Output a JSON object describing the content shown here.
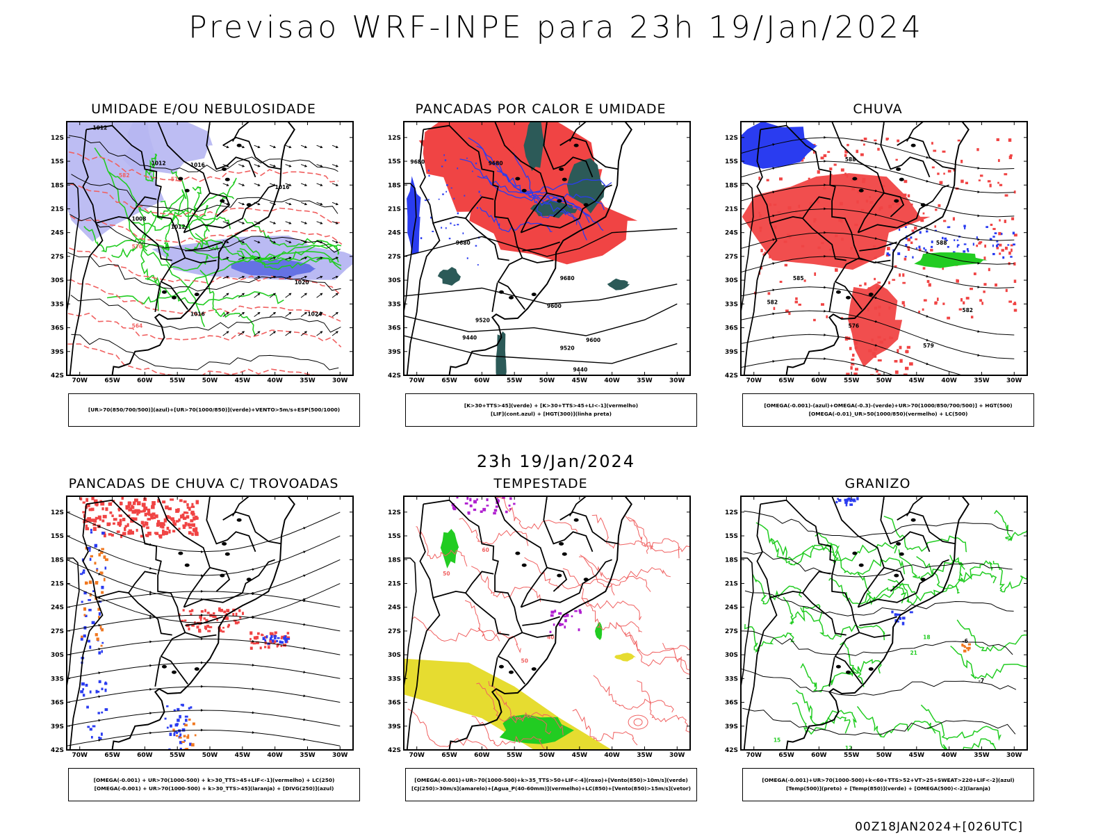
{
  "header": {
    "title": "Previsao WRF-INPE  para 23h 19/Jan/2024",
    "subtitle": "23h 19/Jan/2024",
    "footer": "00Z18JAN2024+[026UTC]"
  },
  "axes": {
    "lat_labels": [
      "12S",
      "15S",
      "18S",
      "21S",
      "24S",
      "27S",
      "30S",
      "33S",
      "36S",
      "39S",
      "42S"
    ],
    "lon_labels": [
      "70W",
      "65W",
      "60W",
      "55W",
      "50W",
      "45W",
      "40W",
      "35W",
      "30W"
    ]
  },
  "panels": [
    {
      "id": "umidade",
      "title": "UMIDADE E/OU NEBULOSIDADE",
      "legend": [
        "[UR>70(850/700/500)](azul)+[UR>70(1000/850)](verde)+VENTO>5m/s+ESP(500/1000)"
      ],
      "contour_labels": [
        "1012",
        "1012",
        "1016",
        "1008",
        "1012",
        "1016",
        "1020",
        "1024",
        "1016",
        "576",
        "582",
        "570",
        "564"
      ]
    },
    {
      "id": "pancadas-calor",
      "title": "PANCADAS POR CALOR E UMIDADE",
      "legend": [
        "[K>30+TTS>45](verde) + [K>30+TTS>45+LI<-1](vermelho)",
        "[LIF](cont.azul) + [HGT(300)](linha preta)"
      ],
      "contour_labels": [
        "9680",
        "9680",
        "9680",
        "9600",
        "9520",
        "9440",
        "9680",
        "9600",
        "9520",
        "9440"
      ]
    },
    {
      "id": "chuva",
      "title": "CHUVA",
      "legend": [
        "[OMEGA(-0.001)-(azul)+OMEGA(-0.3)-(verde)+UR>70(1000/850/700/500)] + HGT(500)",
        "[OMEGA(-0.01)_UR>50(1000/850)(vermelho) + LC(500)"
      ],
      "contour_labels": [
        "588",
        "588",
        "582",
        "576",
        "579",
        "582",
        "585"
      ]
    },
    {
      "id": "pancadas-trovoadas",
      "title": "PANCADAS DE CHUVA C/ TROVOADAS",
      "legend": [
        "[OMEGA(-0.001) + UR>70(1000-500) + k>30_TTS>45+LIF<-1](vermelho) + LC(250)",
        "[OMEGA(-0.001) + UR>70(1000-500) + k>30_TTS>45](laranja) + [DIVG(250)](azul)"
      ],
      "contour_labels": []
    },
    {
      "id": "tempestade",
      "title": "TEMPESTADE",
      "legend": [
        "[OMEGA(-0.001)+UR>70(1000-500)+k>35_TTS>50+LIF<-4](roxo)+[Vento(850)>10m/s](verde)",
        "[CJ(250)>30m/s](amarelo)+[Agua_P(40-60mm)](vermelho)+LC(850)+[Vento(850)>15m/s](vetor)"
      ],
      "contour_labels": [
        "50",
        "40",
        "60",
        "50"
      ]
    },
    {
      "id": "granizo",
      "title": "GRANIZO",
      "legend": [
        "[OMEGA(-0.001)+UR>70(1000-500)+k<60+TTS>52+VT>25+SWEAT>220+LIF<-2](azul)",
        "[Temp(500)](preto) + [Temp(850)](verde) + [OMEGA(500)<-2](laranja)"
      ],
      "contour_labels": [
        "-6",
        "18",
        "21",
        "15",
        "12",
        "-7"
      ]
    }
  ],
  "colors": {
    "red": "#f04444",
    "blue": "#2a3cf0",
    "green": "#22cc22",
    "lavender": "#b6b6f2",
    "darkteal": "#2c5a58",
    "yellow": "#e6dc30",
    "purple": "#b020d0",
    "orange": "#f07820",
    "contour_red": "#f06060"
  }
}
